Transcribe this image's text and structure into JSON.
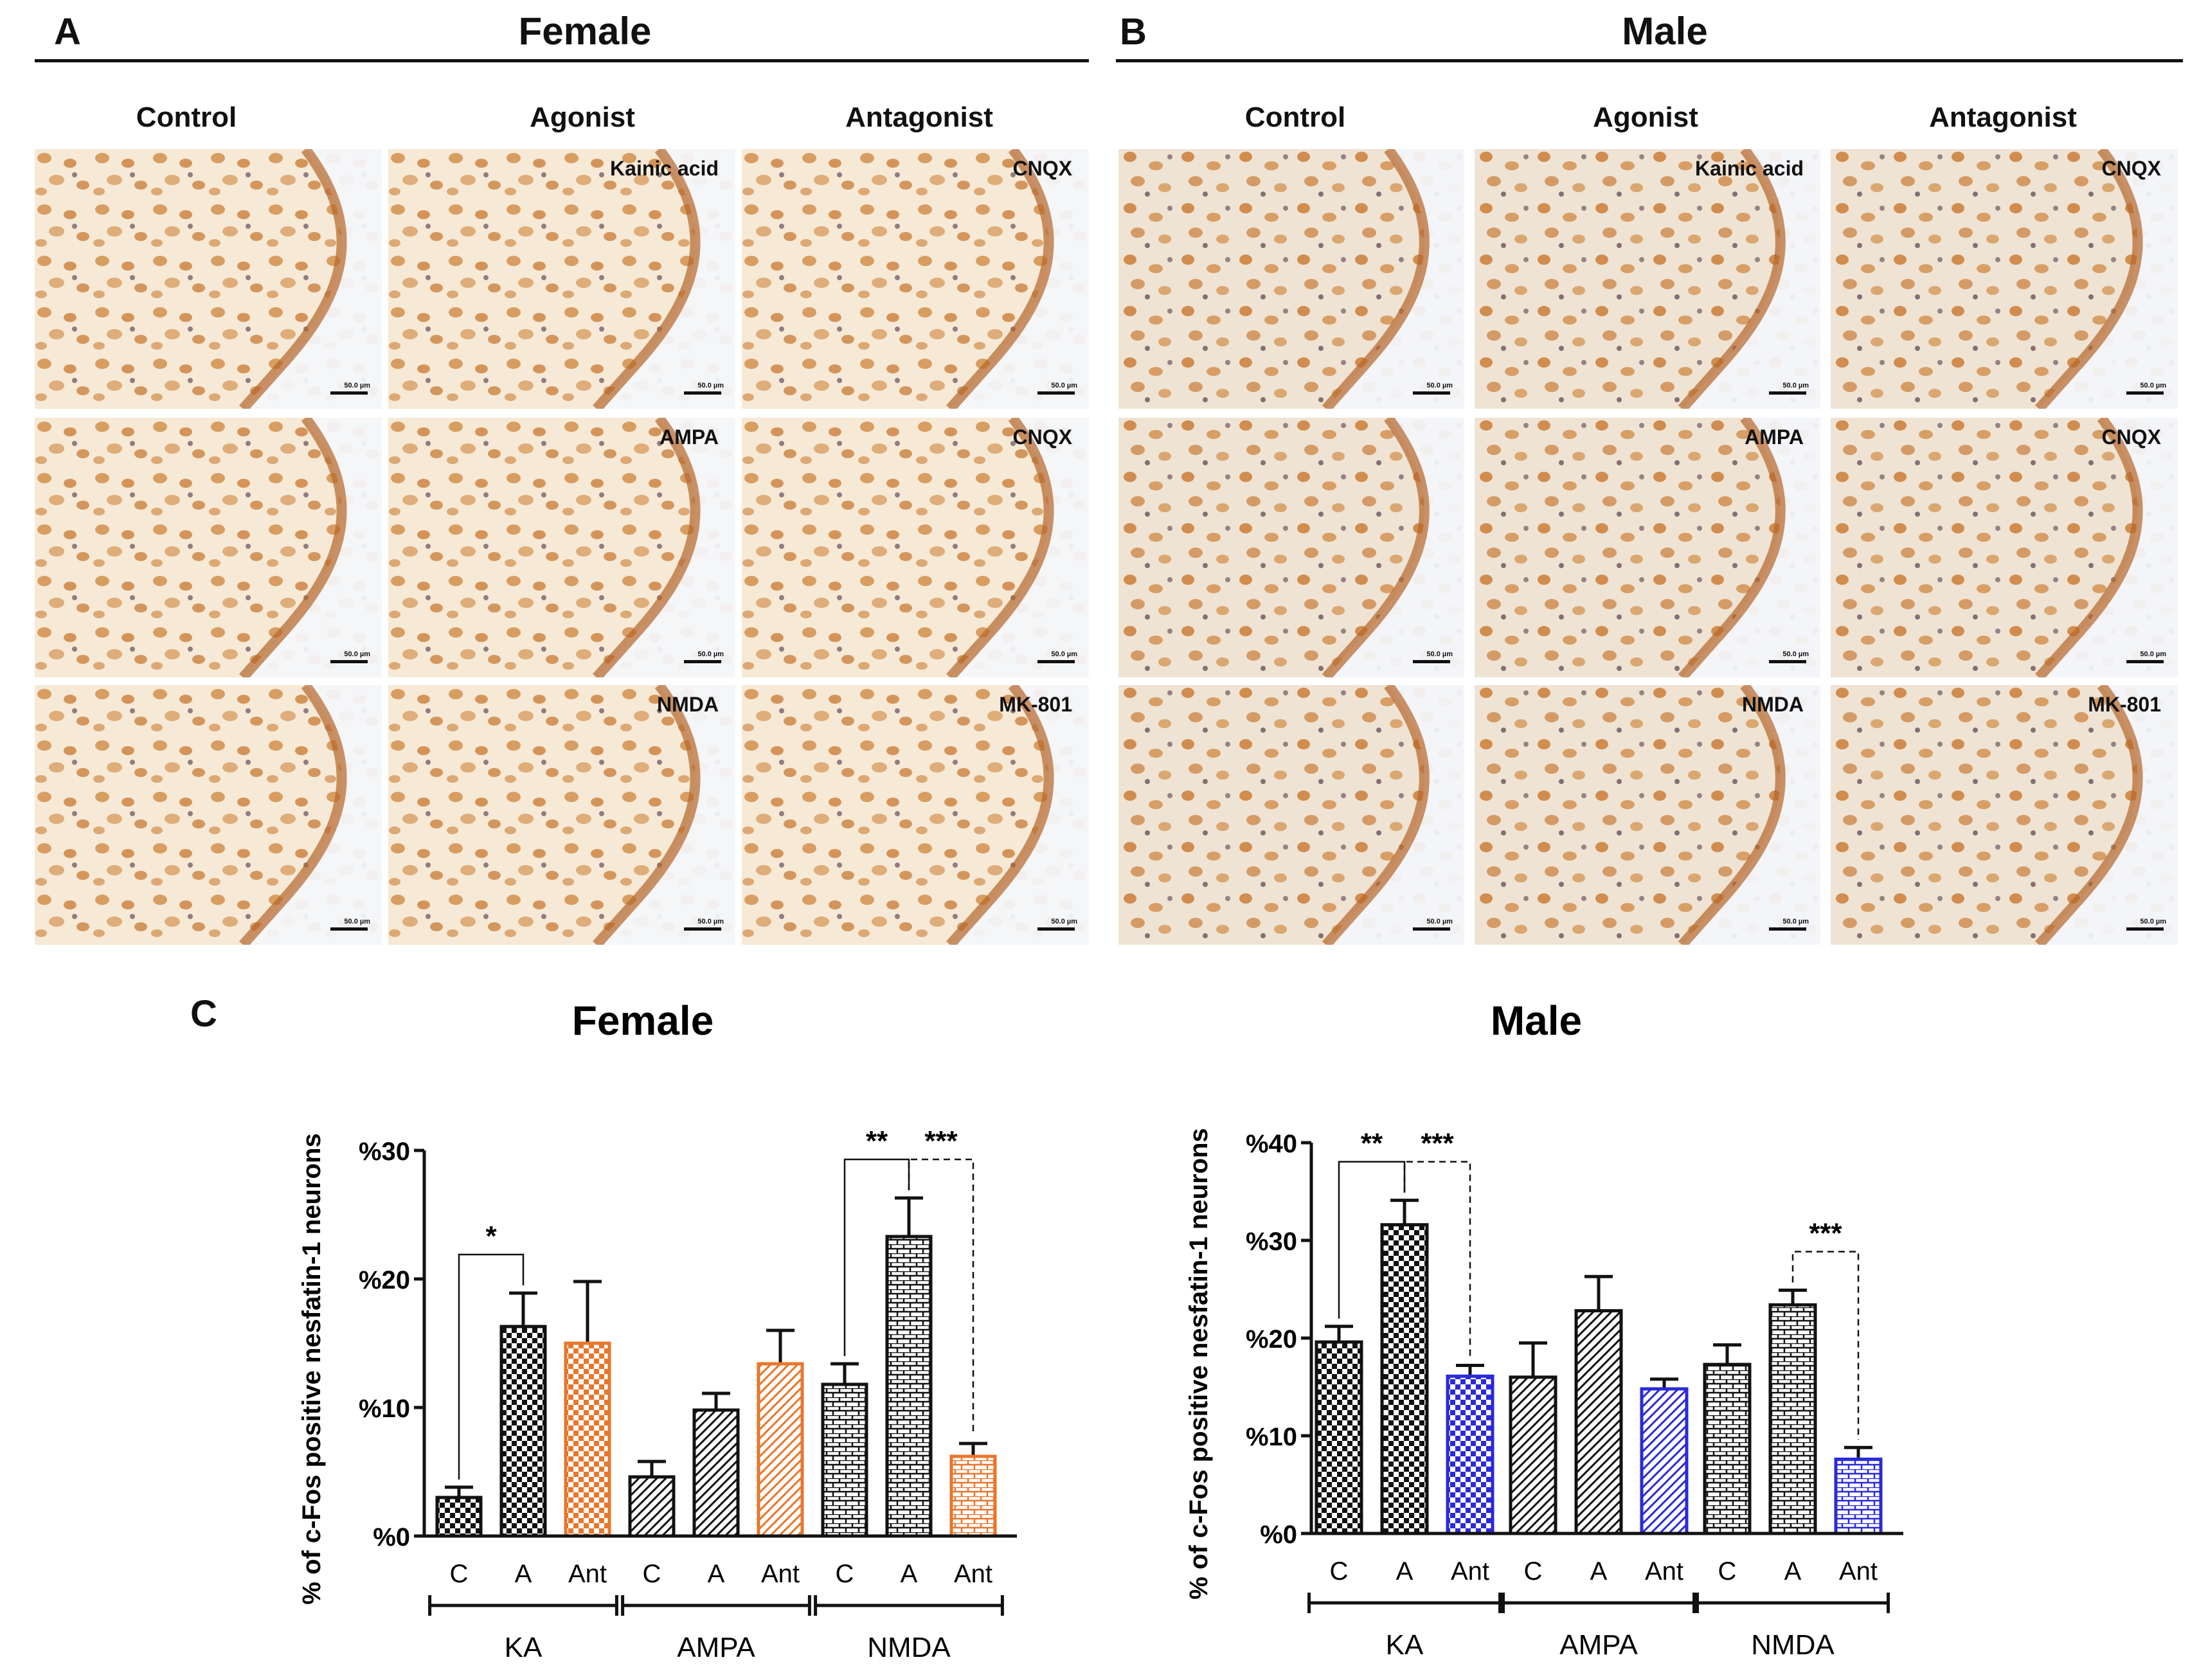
{
  "panels": {
    "A": {
      "letter": "A",
      "title": "Female"
    },
    "B": {
      "letter": "B",
      "title": "Male"
    },
    "C": {
      "letter": "C"
    }
  },
  "micrographs": {
    "column_labels": [
      "Control",
      "Agonist",
      "Antagonist"
    ],
    "scale_bar": "50.0 µm",
    "female": [
      [
        "",
        "Kainic acid",
        "CNQX"
      ],
      [
        "",
        "AMPA",
        "CNQX"
      ],
      [
        "",
        "NMDA",
        "MK-801"
      ]
    ],
    "male": [
      [
        "",
        "Kainic acid",
        "CNQX"
      ],
      [
        "",
        "AMPA",
        "CNQX"
      ],
      [
        "",
        "NMDA",
        "MK-801"
      ]
    ]
  },
  "colors": {
    "bg_female": "#f6e9d6",
    "bg_male": "#eee0cf",
    "stain": "#c8782e",
    "dark_stain": "#4a2a3a",
    "antagonist_female": "#e8762b",
    "antagonist_male": "#2a2ad8"
  },
  "chart_data": [
    {
      "type": "bar",
      "title": "Female",
      "ylabel": "% of c-Fos positive nesfatin-1 neurons",
      "ylim": [
        0,
        30
      ],
      "yticks": [
        "%0",
        "%10",
        "%20",
        "%30"
      ],
      "ytick_values": [
        0,
        10,
        20,
        30
      ],
      "groups": [
        "KA",
        "AMPA",
        "NMDA"
      ],
      "categories": [
        "C",
        "A",
        "Ant",
        "C",
        "A",
        "Ant",
        "C",
        "A",
        "Ant"
      ],
      "values": [
        3.0,
        16.3,
        15.0,
        4.6,
        9.8,
        13.4,
        11.8,
        23.3,
        6.2
      ],
      "errors": [
        0.8,
        2.6,
        4.8,
        1.2,
        1.3,
        2.6,
        1.6,
        3.0,
        1.0
      ],
      "patterns": [
        "checker",
        "checker",
        "checker",
        "diag",
        "diag",
        "diag",
        "brick",
        "brick",
        "brick"
      ],
      "significance": [
        {
          "from": 0,
          "to": 1,
          "label": "*",
          "style": "solid"
        },
        {
          "from": 6,
          "to": 7,
          "label": "**",
          "style": "solid"
        },
        {
          "from": 7,
          "to": 8,
          "label": "***",
          "style": "dashed"
        }
      ]
    },
    {
      "type": "bar",
      "title": "Male",
      "ylabel": "% of c-Fos positive nesfatin-1 neurons",
      "ylim": [
        0,
        40
      ],
      "yticks": [
        "%0",
        "%10",
        "%20",
        "%30",
        "%40"
      ],
      "ytick_values": [
        0,
        10,
        20,
        30,
        40
      ],
      "groups": [
        "KA",
        "AMPA",
        "NMDA"
      ],
      "categories": [
        "C",
        "A",
        "Ant",
        "C",
        "A",
        "Ant",
        "C",
        "A",
        "Ant"
      ],
      "values": [
        19.6,
        31.6,
        16.1,
        16.0,
        22.8,
        14.8,
        17.3,
        23.4,
        7.6
      ],
      "errors": [
        1.6,
        2.5,
        1.1,
        3.5,
        3.5,
        1.0,
        2.0,
        1.5,
        1.2
      ],
      "patterns": [
        "checker",
        "checker",
        "checker",
        "diag",
        "diag",
        "diag",
        "brick",
        "brick",
        "brick"
      ],
      "significance": [
        {
          "from": 0,
          "to": 1,
          "label": "**",
          "style": "solid"
        },
        {
          "from": 1,
          "to": 2,
          "label": "***",
          "style": "dashed"
        },
        {
          "from": 7,
          "to": 8,
          "label": "***",
          "style": "dashed"
        }
      ]
    }
  ]
}
